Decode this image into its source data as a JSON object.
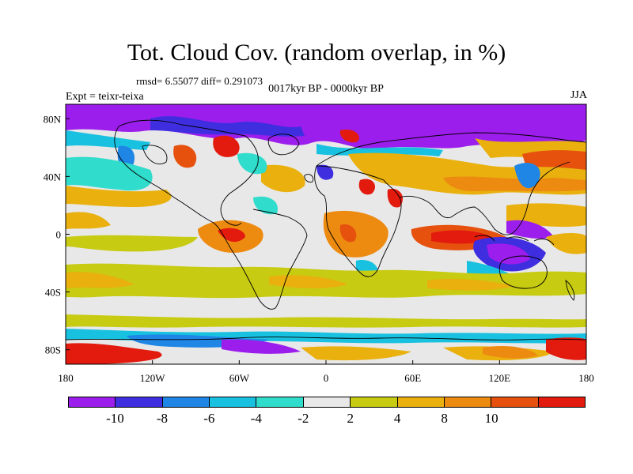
{
  "title": "Tot. Cloud Cov. (random overlap, in %)",
  "stats": "rmsd= 6.55077 diff= 0.291073",
  "period": "0017kyr BP - 0000kyr BP",
  "experiment": "Expt = teixr-teixa",
  "season": "JJA",
  "map": {
    "lon_range": [
      -180,
      180
    ],
    "lat_range": [
      -90,
      90
    ],
    "projection": "cylindrical-equidistant",
    "lon_ticks": [
      {
        "value": -180,
        "label": "180"
      },
      {
        "value": -120,
        "label": "120W"
      },
      {
        "value": -60,
        "label": "60W"
      },
      {
        "value": 0,
        "label": "0"
      },
      {
        "value": 60,
        "label": "60E"
      },
      {
        "value": 120,
        "label": "120E"
      },
      {
        "value": 180,
        "label": "180"
      }
    ],
    "lat_ticks": [
      {
        "value": 80,
        "label": "80N"
      },
      {
        "value": 40,
        "label": "40N"
      },
      {
        "value": 0,
        "label": "0"
      },
      {
        "value": -40,
        "label": "40S"
      },
      {
        "value": -80,
        "label": "80S"
      }
    ]
  },
  "colorbar": {
    "colors": [
      "#9b1eec",
      "#3f2ee0",
      "#1f86e6",
      "#19c1e0",
      "#30dccb",
      "#e8e8e8",
      "#c7cb11",
      "#e9b00e",
      "#ed8a10",
      "#e6510e",
      "#e31a0e"
    ],
    "labels": [
      {
        "after_segment": 1,
        "text": "-10"
      },
      {
        "after_segment": 2,
        "text": "-8"
      },
      {
        "after_segment": 3,
        "text": "-6"
      },
      {
        "after_segment": 4,
        "text": "-4"
      },
      {
        "after_segment": 5,
        "text": "-2"
      },
      {
        "after_segment": 6,
        "text": "2"
      },
      {
        "after_segment": 7,
        "text": "4"
      },
      {
        "after_segment": 8,
        "text": "8"
      },
      {
        "after_segment": 9,
        "text": "10"
      }
    ]
  }
}
